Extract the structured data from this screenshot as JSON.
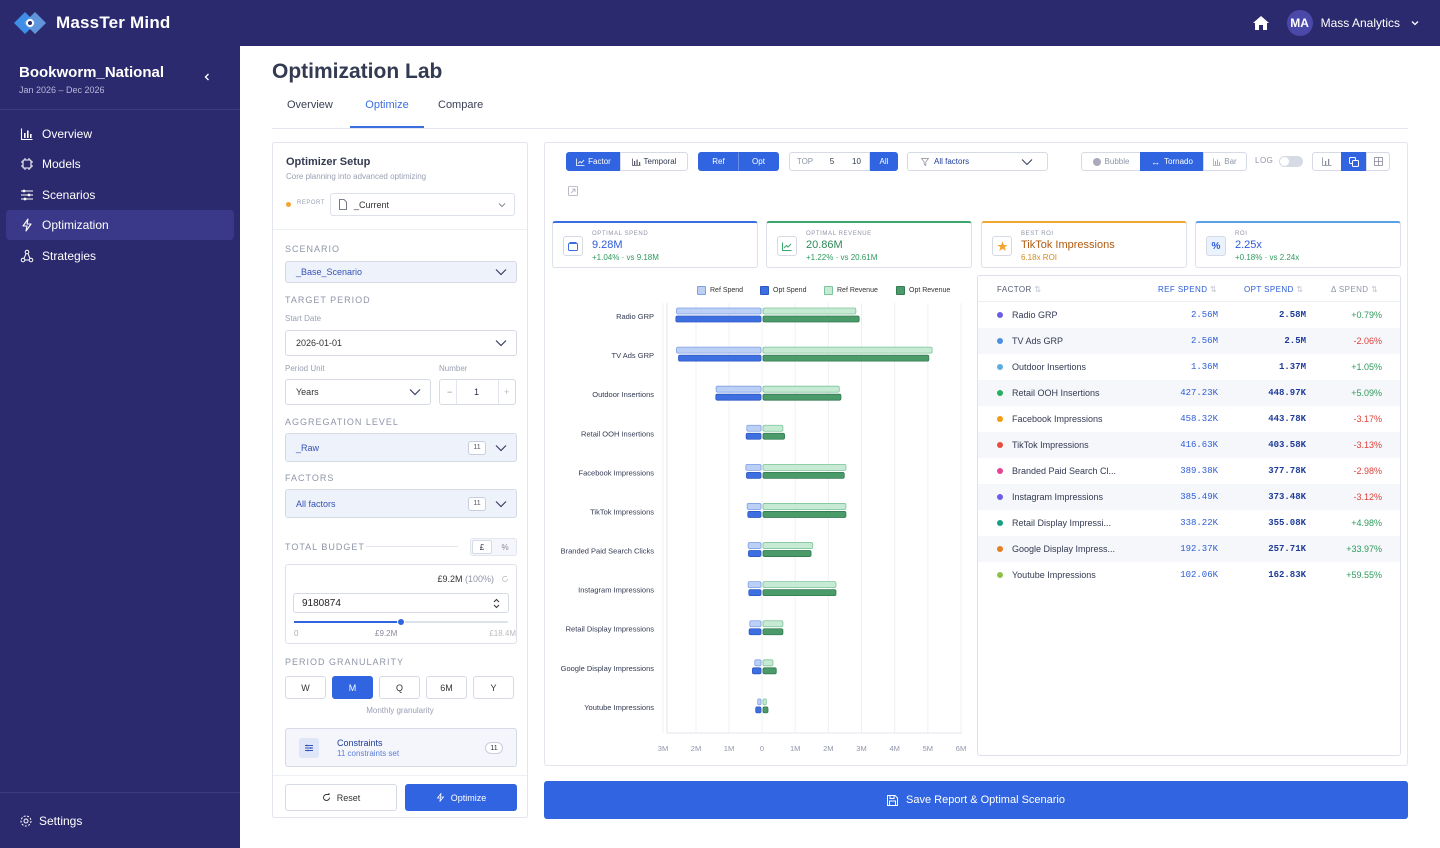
{
  "app": {
    "name": "MassTer Mind",
    "user_initials": "MA",
    "user_name": "Mass Analytics"
  },
  "project": {
    "name": "Bookworm_National",
    "dates": "Jan 2026 – Dec 2026"
  },
  "sidebar": {
    "items": [
      {
        "label": "Overview",
        "icon": "bar-chart-icon"
      },
      {
        "label": "Models",
        "icon": "cpu-icon"
      },
      {
        "label": "Scenarios",
        "icon": "sliders-icon"
      },
      {
        "label": "Optimization",
        "icon": "bolt-icon",
        "active": true
      },
      {
        "label": "Strategies",
        "icon": "network-icon"
      }
    ],
    "settings_label": "Settings"
  },
  "page": {
    "title": "Optimization Lab",
    "tabs": [
      "Overview",
      "Optimize",
      "Compare"
    ],
    "active_tab": "Optimize"
  },
  "setup": {
    "title": "Optimizer Setup",
    "subtitle": "Core planning into advanced optimizing",
    "report_label": "REPORT",
    "report_value": "_Current",
    "scenario_label": "SCENARIO",
    "scenario_value": "_Base_Scenario",
    "target_period_label": "TARGET PERIOD",
    "start_date_label": "Start Date",
    "start_date_value": "2026-01-01",
    "period_unit_label": "Period Unit",
    "period_unit_value": "Years",
    "number_label": "Number",
    "number_value": "1",
    "aggregation_label": "AGGREGATION LEVEL",
    "aggregation_value": "_Raw",
    "aggregation_count": "11",
    "factors_label": "FACTORS",
    "factors_value": "All factors",
    "factors_count": "11",
    "budget_label": "TOTAL BUDGET",
    "currency_btn": "£",
    "percent_btn": "%",
    "budget_display": "£9.2M",
    "budget_pct": "(100%)",
    "budget_value": "9180874",
    "slider_min": "0",
    "slider_mid": "£9.2M",
    "slider_max": "£18.4M",
    "slider_fraction": 0.5,
    "granularity_label": "PERIOD GRANULARITY",
    "granularity_options": [
      "W",
      "M",
      "Q",
      "6M",
      "Y"
    ],
    "granularity_active": "M",
    "granularity_caption": "Monthly granularity",
    "constraints_title": "Constraints",
    "constraints_sub": "11 constraints set",
    "constraints_count": "11",
    "reset_label": "Reset",
    "optimize_label": "Optimize"
  },
  "toolbar": {
    "factor": "Factor",
    "temporal": "Temporal",
    "ref": "Ref",
    "opt": "Opt",
    "top": "TOP",
    "top5": "5",
    "top10": "10",
    "all": "All",
    "filter": "All factors",
    "bubble": "Bubble",
    "tornado": "Tornado",
    "bar": "Bar",
    "log": "LOG"
  },
  "kpis": [
    {
      "label": "OPTIMAL SPEND",
      "value": "9.28M",
      "sub": "+1.04% · vs 9.18M",
      "accent": "#3b6fe0"
    },
    {
      "label": "OPTIMAL REVENUE",
      "value": "20.86M",
      "sub": "+1.22% · vs 20.61M",
      "accent": "#3aa76d"
    },
    {
      "label": "BEST ROI",
      "value": "TikTok Impressions",
      "sub": "6.18x ROI",
      "accent": "#f3a532"
    },
    {
      "label": "ROI",
      "value": "2.25x",
      "sub": "+0.18% · vs 2.24x",
      "accent": "#5aa0e8"
    }
  ],
  "chart_data": {
    "type": "bar",
    "orientation": "tornado",
    "categories": [
      "Radio GRP",
      "TV Ads GRP",
      "Outdoor Insertions",
      "Retail OOH Insertions",
      "Facebook Impressions",
      "TikTok Impressions",
      "Branded Paid Search Clicks",
      "Instagram Impressions",
      "Retail Display Impressions",
      "Google Display Impressions",
      "Youtube Impressions"
    ],
    "series": [
      {
        "name": "Ref Spend",
        "side": "left",
        "values": [
          2.56,
          2.56,
          1.36,
          0.43,
          0.46,
          0.42,
          0.39,
          0.39,
          0.34,
          0.19,
          0.1
        ]
      },
      {
        "name": "Opt Spend",
        "side": "left",
        "values": [
          2.58,
          2.5,
          1.37,
          0.45,
          0.44,
          0.4,
          0.38,
          0.37,
          0.36,
          0.26,
          0.16
        ]
      },
      {
        "name": "Ref Revenue",
        "side": "right",
        "values": [
          2.8,
          5.1,
          2.3,
          0.6,
          2.5,
          2.5,
          1.5,
          2.2,
          0.6,
          0.3,
          0.1
        ]
      },
      {
        "name": "Opt Revenue",
        "side": "right",
        "values": [
          2.9,
          5.0,
          2.35,
          0.65,
          2.45,
          2.5,
          1.45,
          2.2,
          0.6,
          0.4,
          0.15
        ]
      }
    ],
    "xticks_left": [
      "3M",
      "2M",
      "1M"
    ],
    "xticks_right": [
      "0",
      "1M",
      "2M",
      "3M",
      "4M",
      "5M",
      "6M"
    ],
    "xlim_left": [
      0,
      3
    ],
    "xlim_right": [
      0,
      6
    ],
    "colors": {
      "ref_spend": "#bcd0f5",
      "opt_spend": "#3e6fe0",
      "ref_revenue": "#c6ead3",
      "opt_revenue": "#4a9a6a"
    }
  },
  "table": {
    "headers": [
      "FACTOR",
      "REF SPEND",
      "OPT SPEND",
      "Δ SPEND"
    ],
    "rows": [
      {
        "factor": "Radio GRP",
        "ref": "2.56M",
        "opt": "2.58M",
        "delta": "+0.79%",
        "color": "#6c5ce7",
        "pos": true
      },
      {
        "factor": "TV Ads GRP",
        "ref": "2.56M",
        "opt": "2.5M",
        "delta": "-2.06%",
        "color": "#4a90e2",
        "pos": false
      },
      {
        "factor": "Outdoor Insertions",
        "ref": "1.36M",
        "opt": "1.37M",
        "delta": "+1.05%",
        "color": "#5dade2",
        "pos": true
      },
      {
        "factor": "Retail OOH Insertions",
        "ref": "427.23K",
        "opt": "448.97K",
        "delta": "+5.09%",
        "color": "#27ae60",
        "pos": true
      },
      {
        "factor": "Facebook Impressions",
        "ref": "458.32K",
        "opt": "443.78K",
        "delta": "-3.17%",
        "color": "#f39c12",
        "pos": false
      },
      {
        "factor": "TikTok Impressions",
        "ref": "416.63K",
        "opt": "403.58K",
        "delta": "-3.13%",
        "color": "#e74c3c",
        "pos": false
      },
      {
        "factor": "Branded Paid Search Cl...",
        "ref": "389.38K",
        "opt": "377.78K",
        "delta": "-2.98%",
        "color": "#e84393",
        "pos": false
      },
      {
        "factor": "Instagram Impressions",
        "ref": "385.49K",
        "opt": "373.48K",
        "delta": "-3.12%",
        "color": "#6c5ce7",
        "pos": false
      },
      {
        "factor": "Retail Display Impressi...",
        "ref": "338.22K",
        "opt": "355.08K",
        "delta": "+4.98%",
        "color": "#16a085",
        "pos": true
      },
      {
        "factor": "Google Display Impress...",
        "ref": "192.37K",
        "opt": "257.71K",
        "delta": "+33.97%",
        "color": "#e67e22",
        "pos": true
      },
      {
        "factor": "Youtube Impressions",
        "ref": "102.06K",
        "opt": "162.83K",
        "delta": "+59.55%",
        "color": "#8bc34a",
        "pos": true
      }
    ]
  },
  "save_label": "Save Report & Optimal Scenario"
}
